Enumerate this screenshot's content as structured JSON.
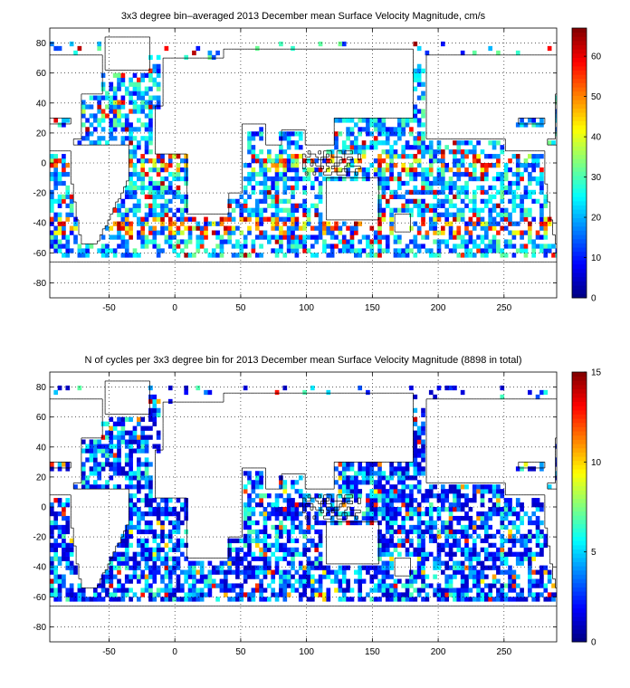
{
  "chart_data": [
    {
      "type": "heatmap",
      "title": "3x3 degree bin–averaged 2013 December mean Surface Velocity Magnitude, cm/s",
      "xlabel": "",
      "ylabel": "",
      "xlim": [
        -95,
        290
      ],
      "ylim": [
        -90,
        90
      ],
      "xticks": [
        -50,
        0,
        50,
        100,
        150,
        200,
        250
      ],
      "yticks": [
        80,
        60,
        40,
        20,
        0,
        -20,
        -40,
        -60,
        -80
      ],
      "grid": true,
      "colorbar": {
        "range": [
          0,
          67
        ],
        "ticks": [
          0,
          10,
          20,
          30,
          40,
          50,
          60
        ],
        "colormap": "jet"
      },
      "ocean_fill": 0.6
    },
    {
      "type": "heatmap",
      "title": "N of cycles per 3x3 degree bin for 2013 December mean Surface Velocity Magnitude (8898 in total)",
      "xlabel": "",
      "ylabel": "",
      "xlim": [
        -95,
        290
      ],
      "ylim": [
        -90,
        90
      ],
      "xticks": [
        -50,
        0,
        50,
        100,
        150,
        200,
        250
      ],
      "yticks": [
        80,
        60,
        40,
        20,
        0,
        -20,
        -40,
        -60,
        -80
      ],
      "grid": true,
      "colorbar": {
        "range": [
          0,
          15
        ],
        "ticks": [
          0,
          5,
          10,
          15
        ],
        "colormap": "jet"
      },
      "ocean_fill": 0.65
    }
  ]
}
